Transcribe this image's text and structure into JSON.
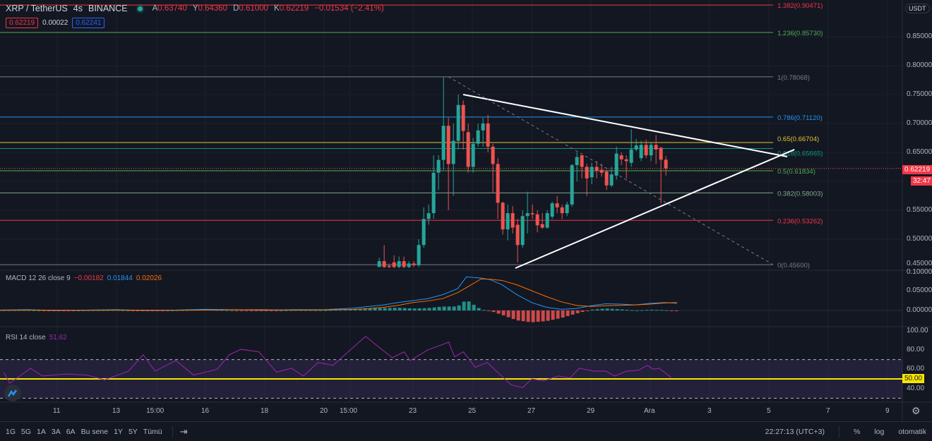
{
  "header": {
    "symbol": "XRP / TetherUS",
    "interval": "4s",
    "exchange": "BINANCE",
    "ohlc": [
      {
        "k": "A",
        "v": "0.63740"
      },
      {
        "k": "Y",
        "v": "0.64360"
      },
      {
        "k": "D",
        "v": "0.61000"
      },
      {
        "k": "K",
        "v": "0.62219"
      }
    ],
    "change": "−0.01534 (−2.41%)",
    "bid": "0.62219",
    "spread": "0.00022",
    "ask": "0.62241"
  },
  "colors": {
    "bg": "#131722",
    "up": "#26a69a",
    "down": "#ef5350",
    "macd": "#2196f3",
    "signal": "#ff6d00",
    "rsi": "#9c27b0",
    "rsi_mid": "#f7e600"
  },
  "price_axis": {
    "currency": "USDT",
    "ticks": [
      "0.85000",
      "0.80000",
      "0.75000",
      "0.70000",
      "0.65000",
      "0.55000",
      "0.50000",
      "0.45000"
    ],
    "last_price": "0.62219",
    "countdown": "32:47"
  },
  "macd_axis": {
    "ticks": [
      "0.10000",
      "0.05000",
      "0.00000"
    ]
  },
  "rsi_axis": {
    "ticks": [
      "100.00",
      "80.00",
      "60.00",
      "40.00"
    ],
    "mid_label": "50.00"
  },
  "time_axis": {
    "labels": [
      {
        "t": "11",
        "d": 11
      },
      {
        "t": "13",
        "d": 13
      },
      {
        "t": "15:00",
        "d": 14.36
      },
      {
        "t": "16",
        "d": 16
      },
      {
        "t": "18",
        "d": 18
      },
      {
        "t": "20",
        "d": 20
      },
      {
        "t": "15:00",
        "d": 20.88
      },
      {
        "t": "23",
        "d": 23
      },
      {
        "t": "25",
        "d": 25
      },
      {
        "t": "27",
        "d": 27
      },
      {
        "t": "29",
        "d": 29
      },
      {
        "t": "Ara",
        "d": 31
      },
      {
        "t": "3",
        "d": 33
      },
      {
        "t": "5",
        "d": 35
      },
      {
        "t": "7",
        "d": 37
      },
      {
        "t": "9",
        "d": 39
      }
    ]
  },
  "macd_legend": {
    "name": "MACD 12 26 close 9",
    "hist": "−0.00182",
    "macd": "0.01844",
    "signal": "0.02026"
  },
  "rsi_legend": {
    "name": "RSI 14 close",
    "value": "51.62"
  },
  "bottom_bar": {
    "ranges": [
      "1G",
      "5G",
      "1A",
      "3A",
      "6A",
      "Bu sene",
      "1Y",
      "5Y",
      "Tümü"
    ],
    "time": "22:27:13 (UTC+3)",
    "percent": "%",
    "log": "log",
    "auto": "otomatik"
  },
  "chart_data": {
    "type": "candlestick",
    "interval": "4s",
    "first_candle_day": 21.86,
    "candles": [
      [
        0.452,
        0.468,
        0.452,
        0.462
      ],
      [
        0.462,
        0.49,
        0.45,
        0.452
      ],
      [
        0.454,
        0.458,
        0.45,
        0.452
      ],
      [
        0.46,
        0.472,
        0.45,
        0.452
      ],
      [
        0.452,
        0.47,
        0.45,
        0.462
      ],
      [
        0.462,
        0.47,
        0.45,
        0.452
      ],
      [
        0.452,
        0.462,
        0.45,
        0.458
      ],
      [
        0.458,
        0.462,
        0.452,
        0.455
      ],
      [
        0.455,
        0.5,
        0.452,
        0.49
      ],
      [
        0.49,
        0.555,
        0.485,
        0.535
      ],
      [
        0.535,
        0.56,
        0.525,
        0.545
      ],
      [
        0.545,
        0.645,
        0.535,
        0.615
      ],
      [
        0.615,
        0.645,
        0.585,
        0.637
      ],
      [
        0.637,
        0.78,
        0.62,
        0.696
      ],
      [
        0.696,
        0.71,
        0.55,
        0.63
      ],
      [
        0.63,
        0.7,
        0.575,
        0.67
      ],
      [
        0.67,
        0.75,
        0.655,
        0.732
      ],
      [
        0.732,
        0.74,
        0.655,
        0.687
      ],
      [
        0.685,
        0.7,
        0.615,
        0.625
      ],
      [
        0.625,
        0.675,
        0.615,
        0.665
      ],
      [
        0.665,
        0.7,
        0.66,
        0.688
      ],
      [
        0.688,
        0.71,
        0.66,
        0.7
      ],
      [
        0.7,
        0.715,
        0.65,
        0.66
      ],
      [
        0.66,
        0.665,
        0.58,
        0.63
      ],
      [
        0.63,
        0.64,
        0.535,
        0.563
      ],
      [
        0.563,
        0.565,
        0.508,
        0.517
      ],
      [
        0.517,
        0.56,
        0.498,
        0.545
      ],
      [
        0.545,
        0.557,
        0.51,
        0.52
      ],
      [
        0.525,
        0.535,
        0.46,
        0.49
      ],
      [
        0.49,
        0.55,
        0.485,
        0.54
      ],
      [
        0.54,
        0.582,
        0.51,
        0.545
      ],
      [
        0.545,
        0.56,
        0.535,
        0.543
      ],
      [
        0.543,
        0.55,
        0.512,
        0.524
      ],
      [
        0.526,
        0.545,
        0.518,
        0.52
      ],
      [
        0.52,
        0.55,
        0.518,
        0.545
      ],
      [
        0.539,
        0.565,
        0.535,
        0.562
      ],
      [
        0.562,
        0.575,
        0.545,
        0.555
      ],
      [
        0.555,
        0.56,
        0.535,
        0.545
      ],
      [
        0.545,
        0.565,
        0.54,
        0.56
      ],
      [
        0.56,
        0.63,
        0.556,
        0.628
      ],
      [
        0.628,
        0.65,
        0.6,
        0.642
      ],
      [
        0.645,
        0.645,
        0.605,
        0.625
      ],
      [
        0.625,
        0.63,
        0.575,
        0.605
      ],
      [
        0.607,
        0.632,
        0.595,
        0.625
      ],
      [
        0.625,
        0.635,
        0.605,
        0.618
      ],
      [
        0.62,
        0.63,
        0.608,
        0.615
      ],
      [
        0.617,
        0.62,
        0.585,
        0.593
      ],
      [
        0.593,
        0.625,
        0.59,
        0.612
      ],
      [
        0.61,
        0.66,
        0.603,
        0.648
      ],
      [
        0.645,
        0.65,
        0.628,
        0.638
      ],
      [
        0.638,
        0.645,
        0.605,
        0.635
      ],
      [
        0.632,
        0.69,
        0.625,
        0.655
      ],
      [
        0.655,
        0.673,
        0.652,
        0.662
      ],
      [
        0.64,
        0.67,
        0.635,
        0.663
      ],
      [
        0.663,
        0.672,
        0.64,
        0.645
      ],
      [
        0.645,
        0.668,
        0.635,
        0.663
      ],
      [
        0.663,
        0.68,
        0.63,
        0.655
      ],
      [
        0.658,
        0.66,
        0.562,
        0.6374
      ],
      [
        0.6374,
        0.6436,
        0.61,
        0.62219
      ]
    ],
    "fib_levels": [
      {
        "label": "1.382(0.90471)",
        "price": 0.90471,
        "color": "#f23645"
      },
      {
        "label": "1.236(0.85730)",
        "price": 0.8573,
        "color": "#4caf50"
      },
      {
        "label": "1(0.78068)",
        "price": 0.78068,
        "color": "#787b86"
      },
      {
        "label": "0.786(0.71120)",
        "price": 0.7112,
        "color": "#2196f3"
      },
      {
        "label": "0.65(0.66704)",
        "price": 0.66704,
        "color": "#e0c72a"
      },
      {
        "label": "0.618(0.65665)",
        "price": 0.65665,
        "color": "#089981"
      },
      {
        "label": "0.5(0.61834)",
        "price": 0.61834,
        "color": "#4caf50"
      },
      {
        "label": "0.382(0.58003)",
        "price": 0.58003,
        "color": "#81a88a"
      },
      {
        "label": "0.236(0.53262)",
        "price": 0.53262,
        "color": "#f23645"
      },
      {
        "label": "0(0.45600)",
        "price": 0.456,
        "color": "#787b86"
      }
    ],
    "trend_lines": [
      {
        "from": [
          24.69,
          0.75
        ],
        "to": [
          35.62,
          0.6427
        ],
        "style": "solid"
      },
      {
        "from": [
          26.45,
          0.45
        ],
        "to": [
          35.86,
          0.655
        ],
        "style": "solid"
      },
      {
        "from": [
          24.19,
          0.78068
        ],
        "to": [
          35.14,
          0.456
        ],
        "style": "dashed"
      }
    ],
    "macd": [
      [
        9,
        0.001,
        0.0005
      ],
      [
        10,
        0.002,
        0.001
      ],
      [
        11,
        0.0,
        0.001
      ],
      [
        12,
        0.001,
        0.0005
      ],
      [
        13,
        0.002,
        0.001
      ],
      [
        14,
        0.0,
        0.001
      ],
      [
        15,
        0.001,
        0.0005
      ],
      [
        16,
        0.003,
        0.001
      ],
      [
        17,
        0.002,
        0.002
      ],
      [
        18,
        0.001,
        0.002
      ],
      [
        19,
        0.002,
        0.001
      ],
      [
        20,
        0.002,
        0.0015
      ],
      [
        20.5,
        0.004,
        0.002
      ],
      [
        21,
        0.006,
        0.003
      ],
      [
        21.5,
        0.01,
        0.005
      ],
      [
        22,
        0.014,
        0.008
      ],
      [
        22.5,
        0.02,
        0.013
      ],
      [
        23,
        0.025,
        0.02
      ],
      [
        23.5,
        0.03,
        0.024
      ],
      [
        24,
        0.04,
        0.03
      ],
      [
        24.5,
        0.055,
        0.045
      ],
      [
        24.8,
        0.085,
        0.058
      ],
      [
        25.3,
        0.082,
        0.08
      ],
      [
        25.6,
        0.078,
        0.079
      ],
      [
        26,
        0.065,
        0.076
      ],
      [
        26.5,
        0.04,
        0.065
      ],
      [
        27,
        0.02,
        0.05
      ],
      [
        27.5,
        0.008,
        0.035
      ],
      [
        28,
        0.003,
        0.022
      ],
      [
        28.5,
        0.005,
        0.013
      ],
      [
        29,
        0.012,
        0.01
      ],
      [
        29.5,
        0.017,
        0.012
      ],
      [
        30,
        0.016,
        0.013
      ],
      [
        30.5,
        0.014,
        0.014
      ],
      [
        31,
        0.018,
        0.016
      ],
      [
        31.5,
        0.02,
        0.019
      ],
      [
        31.9,
        0.018,
        0.02
      ]
    ],
    "rsi": [
      [
        9.2,
        56.6
      ],
      [
        9.4,
        45.6
      ],
      [
        10.1,
        61
      ],
      [
        10.5,
        53
      ],
      [
        11.3,
        55
      ],
      [
        12,
        54
      ],
      [
        12.6,
        49
      ],
      [
        13.4,
        58
      ],
      [
        13.9,
        75
      ],
      [
        14.3,
        58
      ],
      [
        15,
        69
      ],
      [
        15.6,
        54
      ],
      [
        16.4,
        60
      ],
      [
        16.8,
        75
      ],
      [
        17.2,
        80.6
      ],
      [
        17.8,
        78
      ],
      [
        18.4,
        57
      ],
      [
        18.9,
        61
      ],
      [
        19.3,
        53
      ],
      [
        19.8,
        67
      ],
      [
        20.3,
        64
      ],
      [
        20.7,
        75
      ],
      [
        21.4,
        94
      ],
      [
        21.8,
        84
      ],
      [
        22.3,
        72
      ],
      [
        22.7,
        78
      ],
      [
        22.9,
        69
      ],
      [
        23.5,
        80
      ],
      [
        24.2,
        88
      ],
      [
        24.4,
        73
      ],
      [
        24.7,
        78
      ],
      [
        25.1,
        62
      ],
      [
        25.5,
        67
      ],
      [
        26.3,
        44
      ],
      [
        26.7,
        41
      ],
      [
        27,
        50
      ],
      [
        27.4,
        48
      ],
      [
        27.9,
        53
      ],
      [
        28.3,
        51
      ],
      [
        28.6,
        61
      ],
      [
        29.1,
        58
      ],
      [
        29.5,
        58
      ],
      [
        29.8,
        53
      ],
      [
        30.2,
        58
      ],
      [
        30.6,
        59
      ],
      [
        30.9,
        64
      ],
      [
        31.1,
        60
      ],
      [
        31.3,
        61
      ],
      [
        31.7,
        51.6
      ]
    ],
    "rsi_bands": [
      70,
      50,
      30
    ],
    "price_range": [
      0.45,
      0.905
    ]
  }
}
